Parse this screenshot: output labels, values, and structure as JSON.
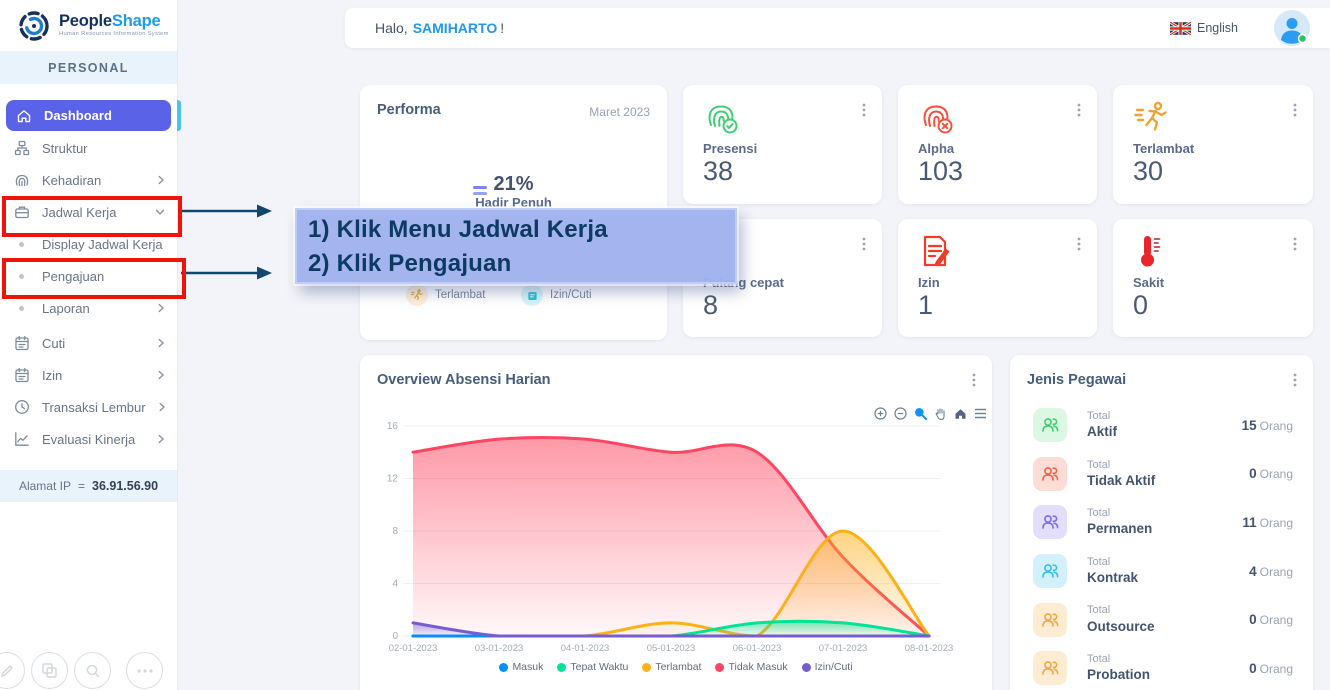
{
  "brand": {
    "name_bold": "People",
    "name_accent": "Shape",
    "tagline": "Human Resources Information System"
  },
  "sidebar": {
    "section_label": "PERSONAL",
    "items": [
      {
        "label": "Dashboard",
        "icon": "home",
        "active": true
      },
      {
        "label": "Struktur",
        "icon": "sitemap"
      },
      {
        "label": "Kehadiran",
        "icon": "fingerprint",
        "chevron": "right"
      },
      {
        "label": "Jadwal Kerja",
        "icon": "briefcase",
        "chevron": "down",
        "highlighted": true
      },
      {
        "label": "Display Jadwal Kerja",
        "icon": "bullet"
      },
      {
        "label": "Pengajuan",
        "icon": "bullet",
        "highlighted": true
      },
      {
        "label": "Laporan",
        "icon": "bullet",
        "chevron": "right"
      },
      {
        "label": "Cuti",
        "icon": "calendar",
        "chevron": "right"
      },
      {
        "label": "Izin",
        "icon": "calendar",
        "chevron": "right"
      },
      {
        "label": "Transaksi Lembur",
        "icon": "clock",
        "chevron": "right"
      },
      {
        "label": "Evaluasi Kinerja",
        "icon": "line-chart",
        "chevron": "right"
      }
    ],
    "ip_label": "Alamat IP",
    "ip_equals": "=",
    "ip_value": "36.91.56.90"
  },
  "header": {
    "greeting_prefix": "Halo,",
    "username": "SAMIHARTO",
    "greeting_suffix": "!",
    "language": "English"
  },
  "performa": {
    "title": "Performa",
    "period": "Maret 2023",
    "percent": "21%",
    "percent_label": "Hadir Penuh",
    "legend": [
      {
        "label": "Terlambat",
        "icon": "runner"
      },
      {
        "label": "Izin/Cuti",
        "icon": "calendar"
      }
    ]
  },
  "stat_cards": [
    {
      "label": "Presensi",
      "value": "38",
      "icon": "fingerprint-check",
      "icon_color": "#3ecf72"
    },
    {
      "label": "Alpha",
      "value": "103",
      "icon": "fingerprint-x",
      "icon_color": "#f4513d"
    },
    {
      "label": "Terlambat",
      "value": "30",
      "icon": "runner",
      "icon_color": "#f0a32f"
    },
    {
      "label": "Pulang cepat",
      "value": "8",
      "icon": "hidden-by-annotation"
    },
    {
      "label": "Izin",
      "value": "1",
      "icon": "document-pencil",
      "icon_color": "#f43b28"
    },
    {
      "label": "Sakit",
      "value": "0",
      "icon": "thermometer",
      "icon_color": "#e8262c"
    }
  ],
  "chart_card": {
    "title": "Overview Absensi Harian",
    "toolbar_icons": [
      "zoom-in",
      "zoom-out",
      "selection-zoom",
      "pan",
      "reset-home",
      "menu"
    ]
  },
  "chart_data": {
    "type": "area",
    "title": "Overview Absensi Harian",
    "categories": [
      "02-01-2023",
      "03-01-2023",
      "04-01-2023",
      "05-01-2023",
      "06-01-2023",
      "07-01-2023",
      "08-01-2023"
    ],
    "series": [
      {
        "name": "Masuk",
        "color": "#008FFB",
        "values": [
          0,
          0,
          0,
          0,
          0,
          0,
          0
        ]
      },
      {
        "name": "Tepat Waktu",
        "color": "#00E396",
        "values": [
          0,
          0,
          0,
          0,
          1,
          1,
          0
        ]
      },
      {
        "name": "Terlambat",
        "color": "#FEB019",
        "values": [
          0,
          0,
          0,
          1,
          0,
          8,
          0
        ]
      },
      {
        "name": "Tidak Masuk",
        "color": "#FF4560",
        "values": [
          14,
          15,
          15,
          14,
          14,
          6,
          0
        ]
      },
      {
        "name": "Izin/Cuti",
        "color": "#775DD0",
        "values": [
          1,
          0,
          0,
          0,
          0,
          0,
          0
        ]
      }
    ],
    "xlabel": "",
    "ylabel": "",
    "ylim": [
      0,
      16
    ],
    "yticks": [
      0,
      4,
      8,
      12,
      16
    ],
    "grid": true,
    "legend_position": "bottom",
    "curve": "smooth",
    "draw_order": [
      3,
      2,
      1,
      0,
      4
    ]
  },
  "jenis_pegawai": {
    "title": "Jenis Pegawai",
    "prefix": "Total",
    "unit": "Orang",
    "rows": [
      {
        "label": "Aktif",
        "count": "15",
        "color": "green"
      },
      {
        "label": "Tidak Aktif",
        "count": "0",
        "color": "red"
      },
      {
        "label": "Permanen",
        "count": "11",
        "color": "purple"
      },
      {
        "label": "Kontrak",
        "count": "4",
        "color": "blue"
      },
      {
        "label": "Outsource",
        "count": "0",
        "color": "orange"
      },
      {
        "label": "Probation",
        "count": "0",
        "color": "orange"
      }
    ]
  },
  "annotation": {
    "line1": "1) Klik Menu Jadwal Kerja",
    "line2": "2) Klik Pengajuan",
    "highlight_color": "#ee1409",
    "arrow_color": "#12486f",
    "box_color": "#a0b1ee",
    "text_color": "#0d3a63"
  },
  "colors": {
    "active_menu": "#5a63e8",
    "link_blue": "#2196f3",
    "band_blue": "#e9f3fb"
  }
}
